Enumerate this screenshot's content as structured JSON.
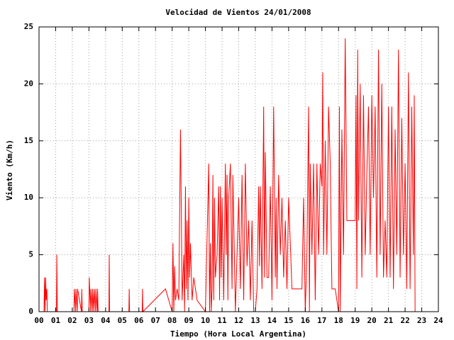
{
  "chart_data": {
    "type": "line",
    "title": "Velocidad de Vientos 24/01/2008",
    "x_label": "Tiempo (Hora Local Argentina)",
    "y_label": "Viento (Km/h)",
    "xlim": [
      0,
      24
    ],
    "ylim": [
      0,
      25
    ],
    "xticks": [
      {
        "value": 0,
        "label": "00"
      },
      {
        "value": 1,
        "label": "01"
      },
      {
        "value": 2,
        "label": "02"
      },
      {
        "value": 3,
        "label": "03"
      },
      {
        "value": 4,
        "label": "04"
      },
      {
        "value": 5,
        "label": "05"
      },
      {
        "value": 6,
        "label": "06"
      },
      {
        "value": 7,
        "label": "07"
      },
      {
        "value": 8,
        "label": "08"
      },
      {
        "value": 9,
        "label": "09"
      },
      10,
      11,
      12,
      13,
      14,
      15,
      16,
      17,
      18,
      19,
      20,
      21,
      22,
      23,
      24
    ],
    "yticks": [
      0,
      5,
      10,
      15,
      20,
      25
    ],
    "grid": true,
    "x": [
      0.3,
      0.33,
      0.36,
      0.4,
      0.43,
      0.47,
      0.5,
      1.05,
      1.07,
      1.1,
      2.1,
      2.12,
      2.2,
      2.22,
      2.3,
      2.32,
      2.55,
      2.57,
      2.6,
      3,
      3.02,
      3.1,
      3.12,
      3.2,
      3.22,
      3.3,
      3.32,
      3.4,
      3.42,
      3.5,
      3.52,
      3.55,
      4.2,
      4.22,
      4.24,
      5.4,
      5.42,
      5.44,
      6.2,
      6.22,
      6.24,
      7.6,
      8,
      8.05,
      8.1,
      8.15,
      8.2,
      8.3,
      8.4,
      8.5,
      8.55,
      8.6,
      8.7,
      8.75,
      8.8,
      8.85,
      8.9,
      8.95,
      9,
      9.05,
      9.1,
      9.2,
      9.3,
      9.4,
      9.5,
      10,
      10.2,
      10.25,
      10.3,
      10.35,
      10.4,
      10.45,
      10.5,
      10.55,
      10.6,
      10.7,
      10.8,
      10.85,
      10.9,
      10.95,
      11,
      11.1,
      11.2,
      11.25,
      11.3,
      11.35,
      11.4,
      11.5,
      11.6,
      11.65,
      11.7,
      11.8,
      11.9,
      12,
      12.1,
      12.2,
      12.3,
      12.4,
      12.5,
      12.6,
      12.7,
      12.8,
      12.9,
      13,
      13.1,
      13.2,
      13.25,
      13.3,
      13.4,
      13.5,
      13.55,
      13.6,
      13.7,
      13.8,
      13.9,
      14,
      14.1,
      14.2,
      14.25,
      14.3,
      14.4,
      14.5,
      14.6,
      14.7,
      14.8,
      14.9,
      15,
      15.2,
      15.4,
      15.8,
      15.9,
      16,
      16.1,
      16.2,
      16.25,
      16.3,
      16.4,
      16.5,
      16.6,
      16.7,
      16.8,
      16.9,
      17,
      17.05,
      17.1,
      17.2,
      17.3,
      17.4,
      17.5,
      17.6,
      17.8,
      18,
      18.05,
      18.1,
      18.2,
      18.3,
      18.4,
      18.5,
      18.55,
      18.6,
      19,
      19.05,
      19.1,
      19.15,
      19.2,
      19.3,
      19.4,
      19.5,
      19.6,
      19.7,
      19.8,
      19.9,
      20,
      20.1,
      20.2,
      20.3,
      20.4,
      20.5,
      20.6,
      20.7,
      20.8,
      20.9,
      21,
      21.1,
      21.2,
      21.3,
      21.4,
      21.5,
      21.6,
      21.7,
      21.8,
      21.9,
      22,
      22.1,
      22.2,
      22.3,
      22.4,
      22.5,
      22.55,
      22.6
    ],
    "series": [
      {
        "color": "#ff0000",
        "values": [
          0,
          3,
          0,
          3,
          1,
          2,
          0,
          0,
          5,
          0,
          0,
          2,
          0,
          2,
          0,
          2,
          0,
          2,
          0,
          0,
          3,
          0,
          2,
          0,
          2,
          0,
          2,
          0,
          2,
          0,
          2,
          0,
          0,
          5,
          0,
          0,
          2,
          0,
          0,
          2,
          0,
          2,
          0,
          6,
          0,
          4,
          1,
          2,
          1,
          16,
          9,
          1,
          5,
          0,
          11,
          2,
          8,
          1,
          10,
          3,
          6,
          1,
          3,
          2,
          1,
          0,
          13,
          0,
          6,
          0,
          2,
          12,
          1,
          10,
          3,
          5,
          11,
          1,
          11,
          3,
          10,
          1,
          13,
          5,
          12,
          1,
          10,
          13,
          2,
          12,
          8,
          0,
          5,
          10,
          2,
          12,
          1,
          13,
          4,
          8,
          1,
          8,
          0,
          0,
          2,
          11,
          4,
          11,
          2,
          18,
          3,
          14,
          3,
          3,
          11,
          1,
          18,
          3,
          10,
          2,
          12,
          5,
          10,
          3,
          8,
          2,
          10,
          2,
          2,
          2,
          10,
          0,
          5,
          18,
          0,
          13,
          5,
          13,
          1,
          13,
          5,
          13,
          11,
          21,
          5,
          15,
          5,
          18,
          13,
          2,
          2,
          0,
          18,
          0,
          16,
          5,
          24,
          8,
          8,
          8,
          8,
          19,
          2,
          23,
          8,
          20,
          3,
          19,
          5,
          12,
          18,
          5,
          19,
          10,
          18,
          3,
          23,
          5,
          20,
          3,
          8,
          3,
          18,
          3,
          18,
          2,
          16,
          5,
          23,
          3,
          17,
          5,
          13,
          2,
          21,
          2,
          18,
          5,
          19,
          0
        ]
      }
    ]
  }
}
